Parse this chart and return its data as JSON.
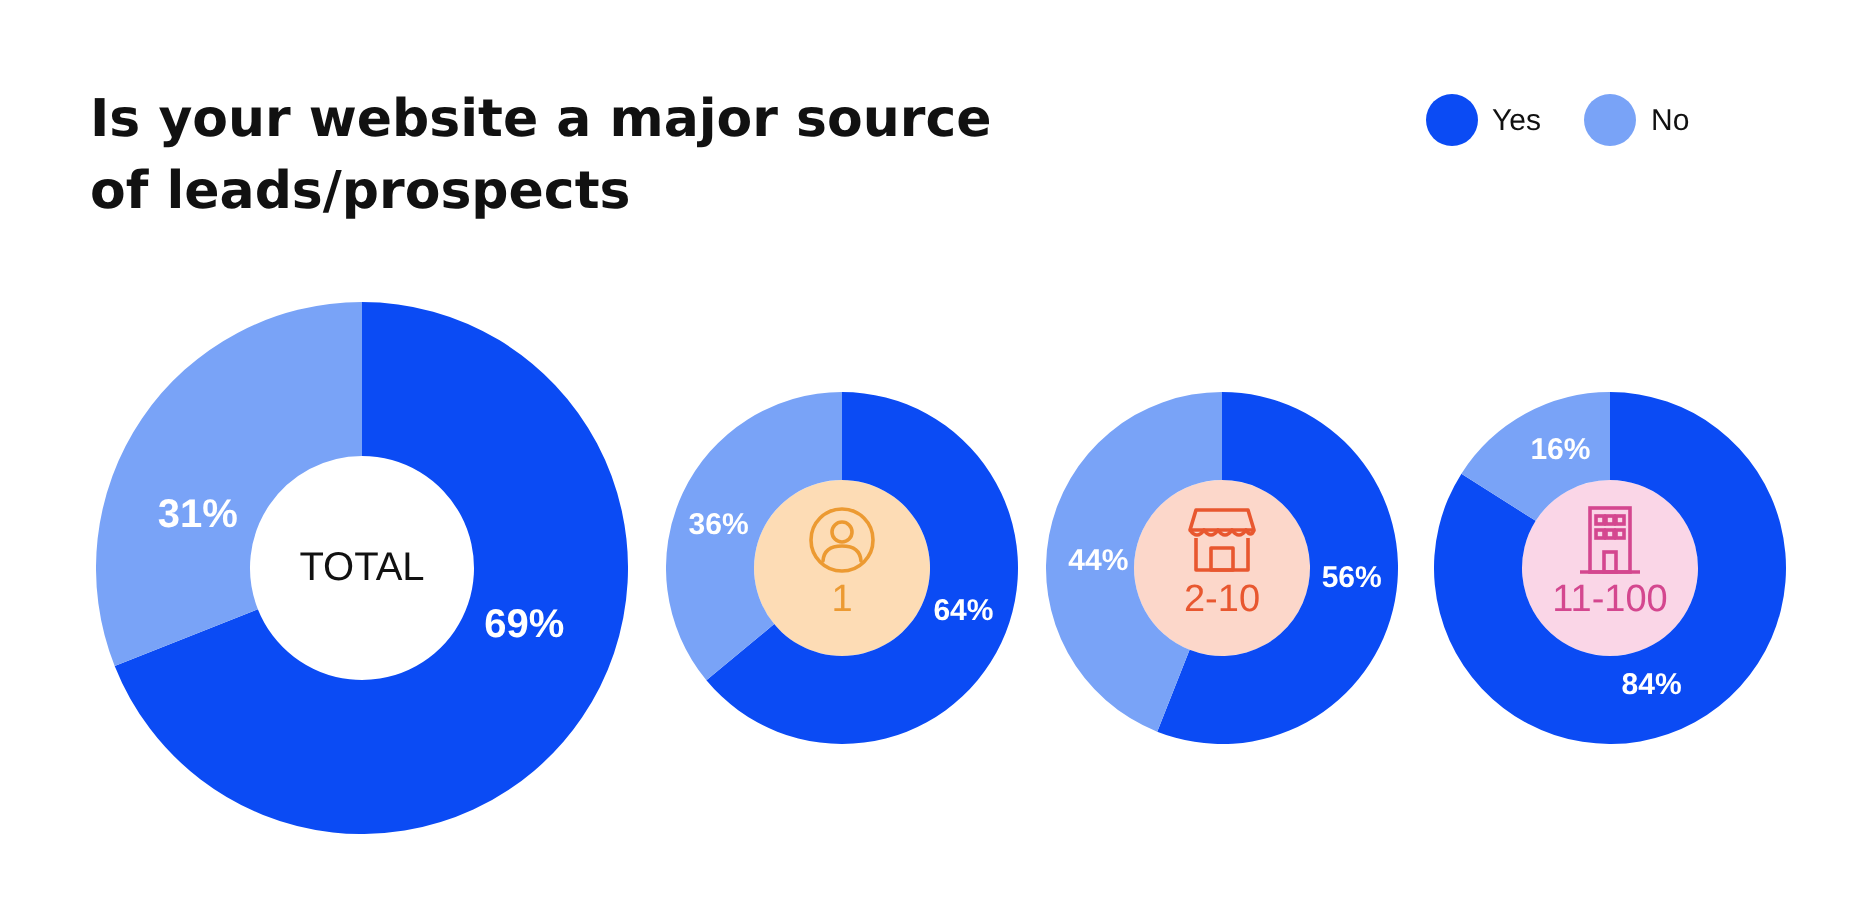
{
  "chart_data": [
    {
      "type": "donut",
      "title": "Is your website a major source of leads/prospects",
      "categories": [
        "Yes",
        "No"
      ],
      "values": [
        69,
        31
      ],
      "colors": [
        "#0b4bf4",
        "#79a3f7"
      ],
      "value_labels": [
        "69%",
        "31%"
      ],
      "annotations": [
        "TOTAL"
      ],
      "legend": "top right"
    },
    {
      "type": "donut",
      "categories": [
        null,
        null
      ],
      "values": [
        64,
        36
      ],
      "colors": [
        "#0b4bf4",
        "#79a3f7"
      ],
      "value_labels": [
        "64%",
        "36%"
      ],
      "annotations": [
        "1"
      ]
    },
    {
      "type": "donut",
      "categories": [
        null,
        null
      ],
      "values": [
        56,
        44
      ],
      "colors": [
        "#0b4bf4",
        "#79a3f7"
      ],
      "value_labels": [
        "56%",
        "44%"
      ],
      "annotations": [
        "2-10"
      ]
    },
    {
      "type": "donut",
      "categories": [
        null,
        null
      ],
      "values": [
        84,
        16
      ],
      "colors": [
        "#0b4bf4",
        "#79a3f7"
      ],
      "value_labels": [
        "84%",
        "16%"
      ],
      "annotations": [
        "11-100"
      ]
    }
  ]
}
